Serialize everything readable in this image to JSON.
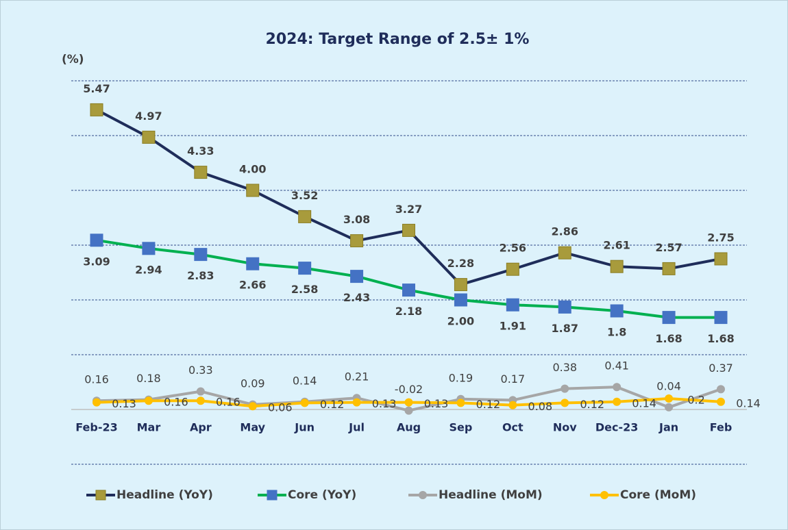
{
  "chart_data": {
    "type": "line",
    "title": "2024:   Target Range of 2.5± 1%",
    "y_label": "(%)",
    "categories": [
      "Feb-23",
      "Mar",
      "Apr",
      "May",
      "Jun",
      "Jul",
      "Aug",
      "Sep",
      "Oct",
      "Nov",
      "Dec-23",
      "Jan",
      "Feb"
    ],
    "ylim": [
      -1,
      6
    ],
    "yticks": [
      -1,
      0,
      1,
      2,
      3,
      4,
      5,
      6
    ],
    "grid": true,
    "legend": "bottom",
    "series": [
      {
        "name": "Headline (YoY)",
        "color": "#1f2d5a",
        "marker": "square",
        "marker_color": "#a89b3c",
        "values": [
          5.47,
          4.97,
          4.33,
          4.0,
          3.52,
          3.08,
          3.27,
          2.28,
          2.56,
          2.86,
          2.61,
          2.57,
          2.75
        ],
        "value_labels": [
          "5.47",
          "4.97",
          "4.33",
          "4.00",
          "3.52",
          "3.08",
          "3.27",
          "2.28",
          "2.56",
          "2.86",
          "2.61",
          "2.57",
          "2.75"
        ],
        "label_position": "above"
      },
      {
        "name": "Core (YoY)",
        "color": "#00b050",
        "marker": "square",
        "marker_color": "#4472c4",
        "values": [
          3.09,
          2.94,
          2.83,
          2.66,
          2.58,
          2.43,
          2.18,
          2.0,
          1.91,
          1.87,
          1.8,
          1.68,
          1.68
        ],
        "value_labels": [
          "3.09",
          "2.94",
          "2.83",
          "2.66",
          "2.58",
          "2.43",
          "2.18",
          "2.00",
          "1.91",
          "1.87",
          "1.8",
          "1.68",
          "1.68"
        ],
        "label_position": "below"
      },
      {
        "name": "Headline (MoM)",
        "color": "#a6a6a6",
        "marker": "circle",
        "marker_color": "#a6a6a6",
        "values": [
          0.16,
          0.18,
          0.33,
          0.09,
          0.14,
          0.21,
          -0.02,
          0.19,
          0.17,
          0.38,
          0.41,
          0.04,
          0.37
        ],
        "value_labels": [
          "0.16",
          "0.18",
          "0.33",
          "0.09",
          "0.14",
          "0.21",
          "-0.02",
          "0.19",
          "0.17",
          "0.38",
          "0.41",
          "0.04",
          "0.37"
        ],
        "label_position": "above"
      },
      {
        "name": "Core (MoM)",
        "color": "#ffc000",
        "marker": "circle",
        "marker_color": "#ffc000",
        "values": [
          0.13,
          0.16,
          0.16,
          0.06,
          0.12,
          0.13,
          0.13,
          0.12,
          0.08,
          0.12,
          0.14,
          0.2,
          0.14
        ],
        "value_labels": [
          "0.13",
          "0.16",
          "0.16",
          "0.06",
          "0.12",
          "0.13",
          "0.13",
          "0.12",
          "0.08",
          "0.12",
          "0.14",
          "0.2",
          "0.14"
        ],
        "label_position": "right"
      }
    ]
  }
}
